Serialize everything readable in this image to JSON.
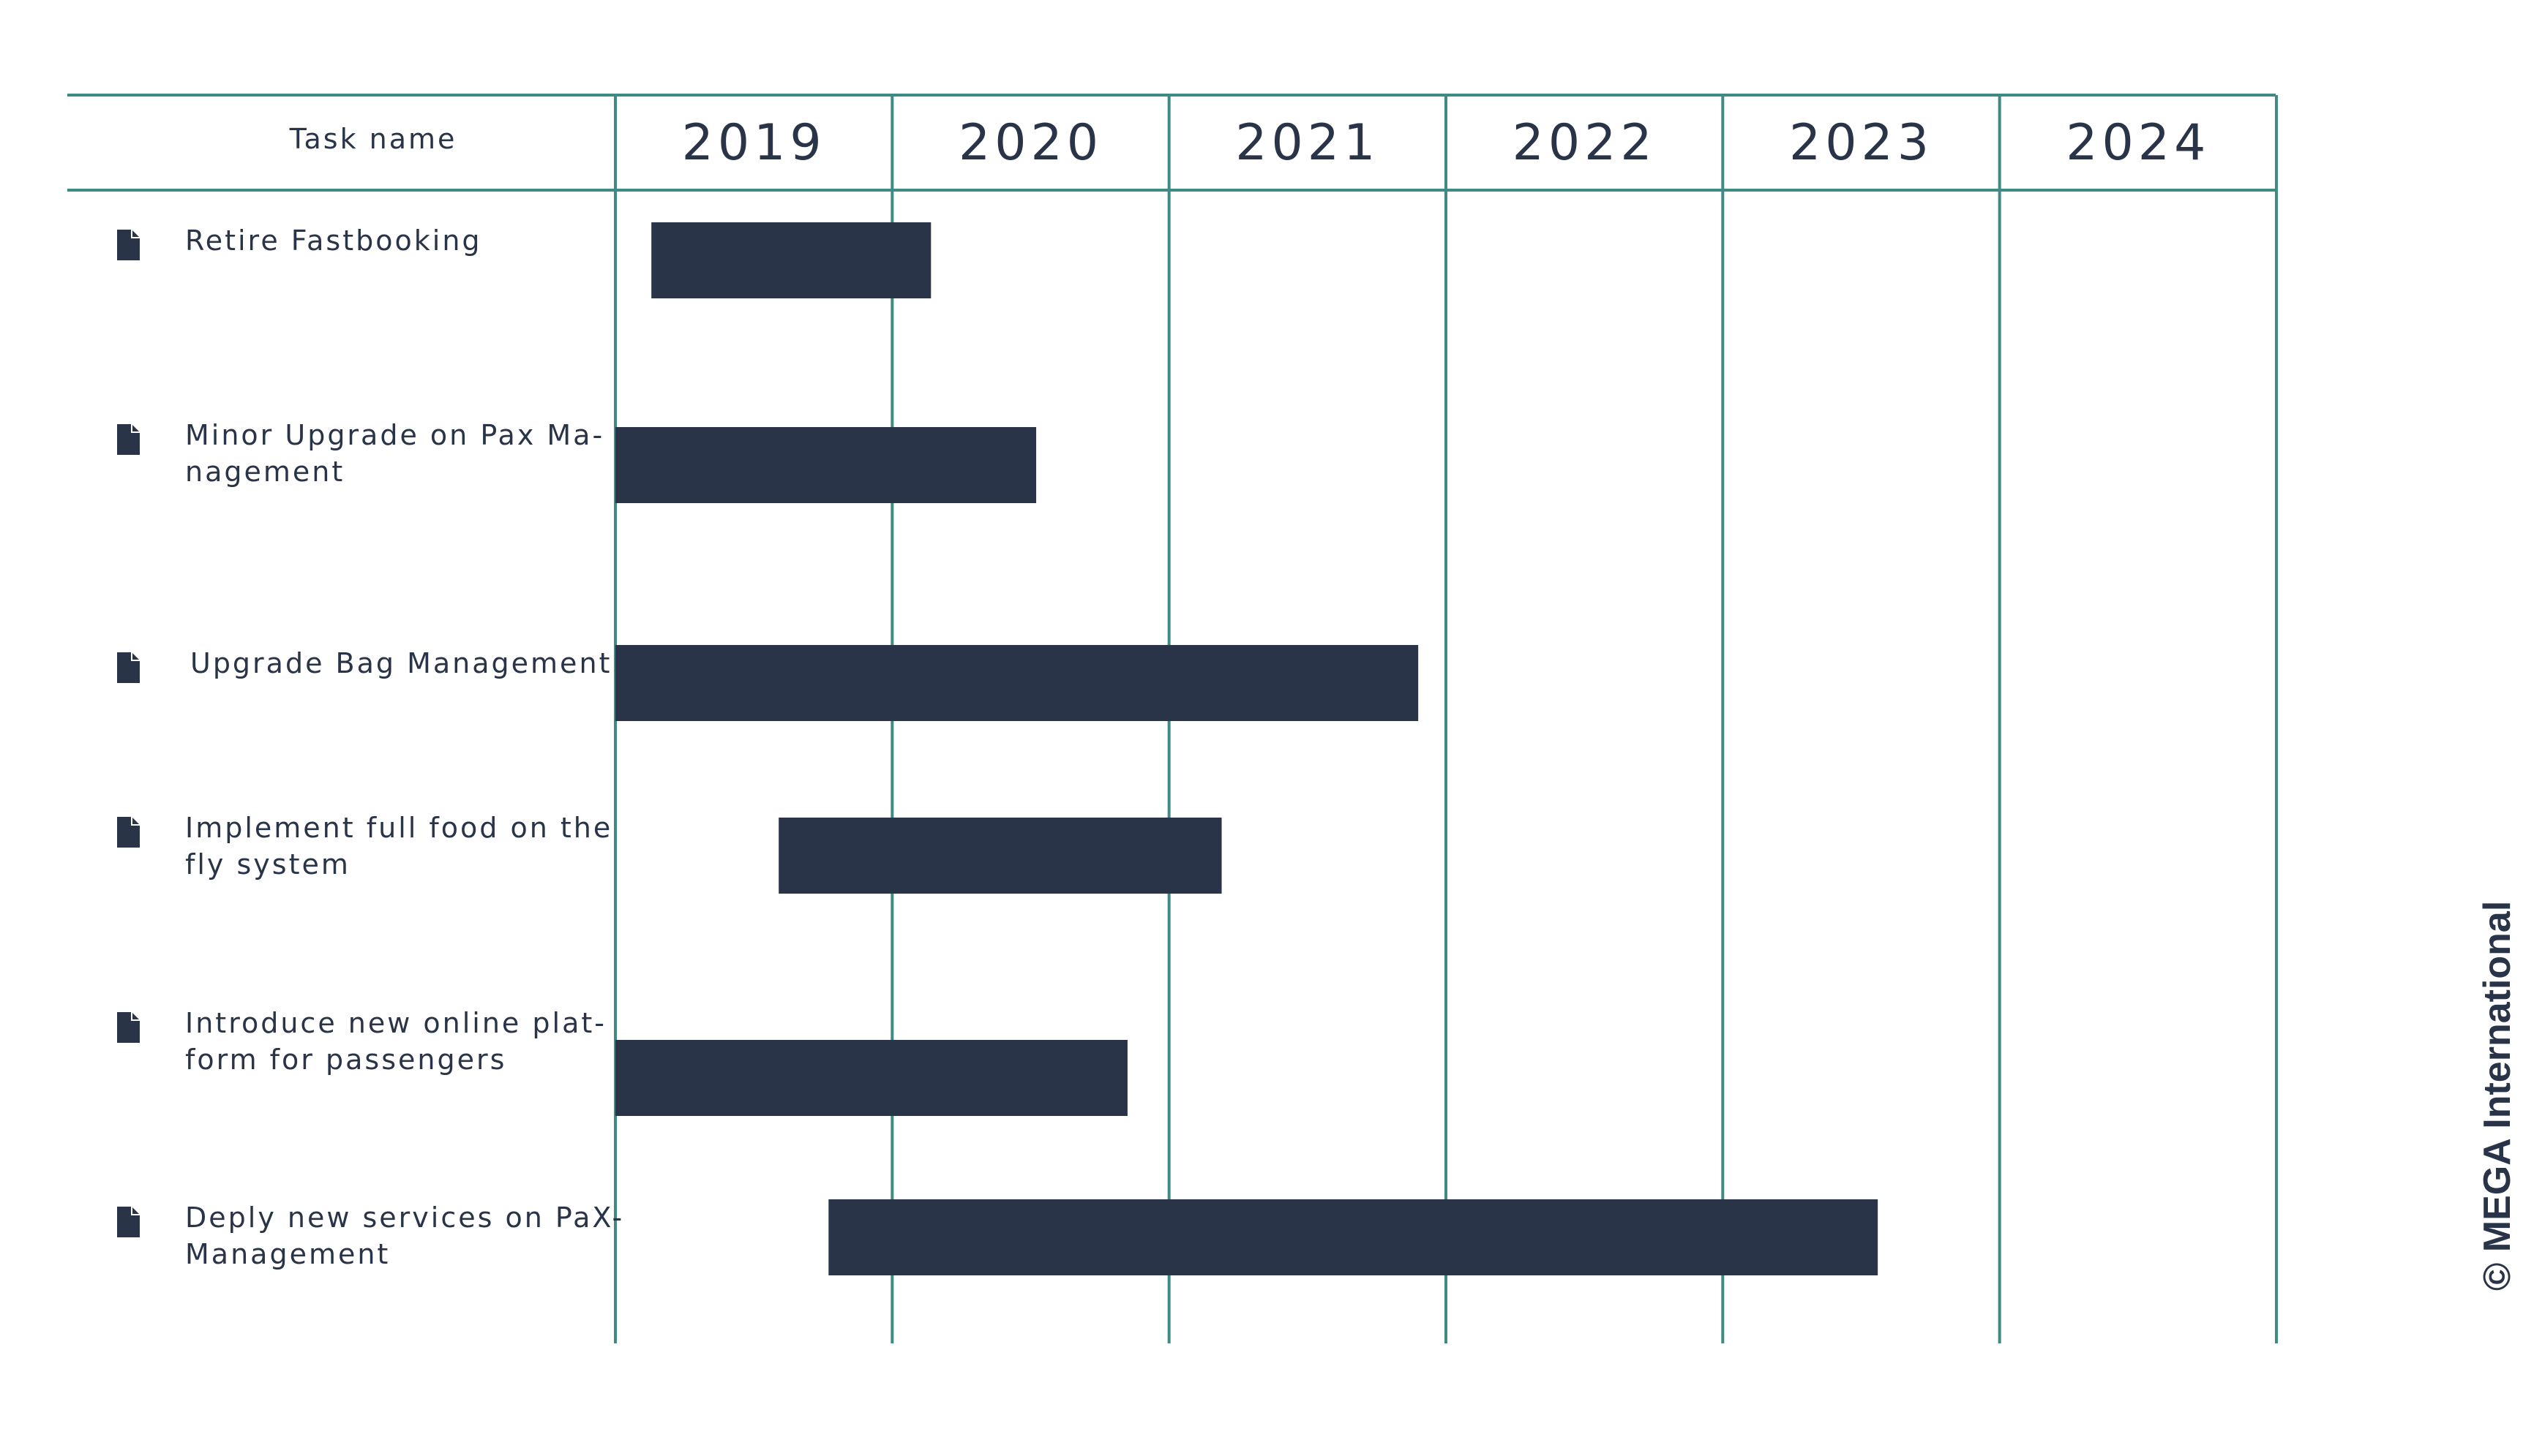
{
  "header": {
    "task_column_label": "Task name"
  },
  "copyright": "© MEGA International",
  "colors": {
    "grid": "#3f8b84",
    "bar": "#2a3449",
    "text": "#2a3449",
    "icon": "#2a3449"
  },
  "icons": {
    "task": "document-icon"
  },
  "chart_data": {
    "type": "gantt",
    "x_axis": {
      "years": [
        "2019",
        "2020",
        "2021",
        "2022",
        "2023",
        "2024"
      ],
      "range": [
        2019.0,
        2025.0
      ]
    },
    "tasks": [
      {
        "name_lines": [
          "Retire Fastbooking"
        ],
        "start": 2019.13,
        "end": 2020.14
      },
      {
        "name_lines": [
          "Minor Upgrade on Pax Ma-",
          "nagement"
        ],
        "start": 2019.0,
        "end": 2020.52
      },
      {
        "name_lines": [
          "Upgrade Bag Management"
        ],
        "start": 2019.0,
        "end": 2021.9
      },
      {
        "name_lines": [
          "Implement full food on the",
          "fly system"
        ],
        "start": 2019.59,
        "end": 2021.19
      },
      {
        "name_lines": [
          "Introduce new online plat-",
          "form for passengers"
        ],
        "start": 2019.0,
        "end": 2020.85
      },
      {
        "name_lines": [
          "Deply new services on PaX-",
          "Management"
        ],
        "start": 2019.77,
        "end": 2023.56
      }
    ]
  }
}
